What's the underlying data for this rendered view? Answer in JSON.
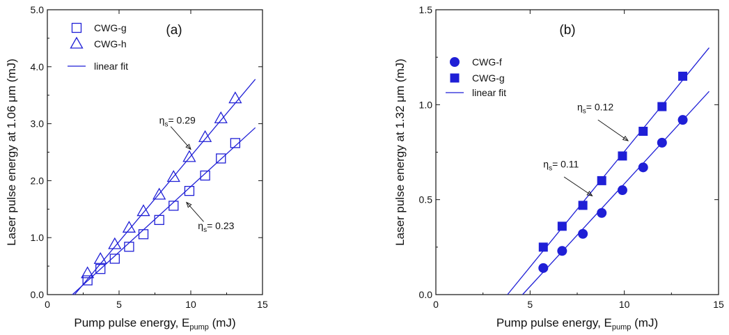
{
  "figure": {
    "colors": {
      "series": "#1f1fd6",
      "axis": "#111111"
    }
  },
  "chart_data": [
    {
      "type": "scatter",
      "panel_label": "(a)",
      "xlabel": "Pump pulse energy, E",
      "xlabel_sub": "pump",
      "xlabel_unit": " (mJ)",
      "ylabel": "Laser pulse energy at 1.06 μm (mJ)",
      "xlim": [
        0,
        15
      ],
      "ylim": [
        0,
        5
      ],
      "x_ticks": [
        "0",
        "5",
        "10",
        "15"
      ],
      "x_tick_values": [
        0,
        5,
        10,
        15
      ],
      "y_ticks": [
        "0.0",
        "1.0",
        "2.0",
        "3.0",
        "4.0",
        "5.0"
      ],
      "y_tick_values": [
        0,
        1,
        2,
        3,
        4,
        5
      ],
      "legend_position": "top-left",
      "series": [
        {
          "name": "CWG-g",
          "marker": "open-square",
          "x": [
            2.8,
            3.7,
            4.7,
            5.7,
            6.7,
            7.8,
            8.8,
            9.9,
            11.0,
            12.1,
            13.1
          ],
          "y": [
            0.25,
            0.45,
            0.63,
            0.84,
            1.06,
            1.31,
            1.56,
            1.82,
            2.09,
            2.39,
            2.66
          ]
        },
        {
          "name": "CWG-h",
          "marker": "open-triangle",
          "x": [
            2.8,
            3.7,
            4.7,
            5.7,
            6.7,
            7.8,
            8.8,
            9.9,
            11.0,
            12.1,
            13.1
          ],
          "y": [
            0.37,
            0.62,
            0.88,
            1.17,
            1.46,
            1.75,
            2.06,
            2.41,
            2.76,
            3.09,
            3.44
          ]
        }
      ],
      "fit_label": "linear fit",
      "fits": [
        {
          "x": [
            1.75,
            14.5
          ],
          "y": [
            0.0,
            2.93
          ]
        },
        {
          "x": [
            1.9,
            14.5
          ],
          "y": [
            0.0,
            3.78
          ]
        }
      ],
      "annotations": [
        {
          "sym": "η",
          "sub": "s",
          "value": "= 0.29",
          "tx": 7.8,
          "ty": 3.0,
          "ax": 8.6,
          "ay": 2.95,
          "bx": 10.0,
          "by": 2.55
        },
        {
          "sym": "η",
          "sub": "s",
          "value": "= 0.23",
          "tx": 10.5,
          "ty": 1.15,
          "ax": 10.9,
          "ay": 1.28,
          "bx": 9.7,
          "by": 1.62
        }
      ]
    },
    {
      "type": "scatter",
      "panel_label": "(b)",
      "xlabel": "Pump pulse energy, E",
      "xlabel_sub": "pump",
      "xlabel_unit": " (mJ)",
      "ylabel": "Laser pulse energy at 1.32 μm (mJ)",
      "xlim": [
        0,
        15
      ],
      "ylim": [
        0,
        1.5
      ],
      "x_ticks": [
        "0",
        "5",
        "10",
        "15"
      ],
      "x_tick_values": [
        0,
        5,
        10,
        15
      ],
      "y_ticks": [
        "0.0",
        "0.5",
        "1.0",
        "1.5"
      ],
      "y_tick_values": [
        0,
        0.5,
        1.0,
        1.5
      ],
      "legend_position": "top-left",
      "series": [
        {
          "name": "CWG-f",
          "marker": "filled-circle",
          "x": [
            5.7,
            6.7,
            7.8,
            8.8,
            9.9,
            11.0,
            12.0,
            13.1
          ],
          "y": [
            0.14,
            0.23,
            0.32,
            0.43,
            0.55,
            0.67,
            0.8,
            0.92
          ]
        },
        {
          "name": "CWG-g",
          "marker": "filled-square",
          "x": [
            5.7,
            6.7,
            7.8,
            8.8,
            9.9,
            11.0,
            12.0,
            13.1
          ],
          "y": [
            0.25,
            0.36,
            0.47,
            0.6,
            0.73,
            0.86,
            0.99,
            1.15
          ]
        }
      ],
      "fit_label": "linear fit",
      "fits": [
        {
          "x": [
            4.6,
            14.5
          ],
          "y": [
            0.0,
            1.07
          ]
        },
        {
          "x": [
            3.8,
            14.5
          ],
          "y": [
            0.0,
            1.3
          ]
        }
      ],
      "annotations": [
        {
          "sym": "η",
          "sub": "s",
          "value": "= 0.12",
          "tx": 7.5,
          "ty": 0.97,
          "ax": 8.6,
          "ay": 0.92,
          "bx": 10.2,
          "by": 0.81
        },
        {
          "sym": "η",
          "sub": "s",
          "value": "= 0.11",
          "tx": 5.7,
          "ty": 0.67,
          "ax": 6.8,
          "ay": 0.62,
          "bx": 8.3,
          "by": 0.52
        }
      ]
    }
  ]
}
